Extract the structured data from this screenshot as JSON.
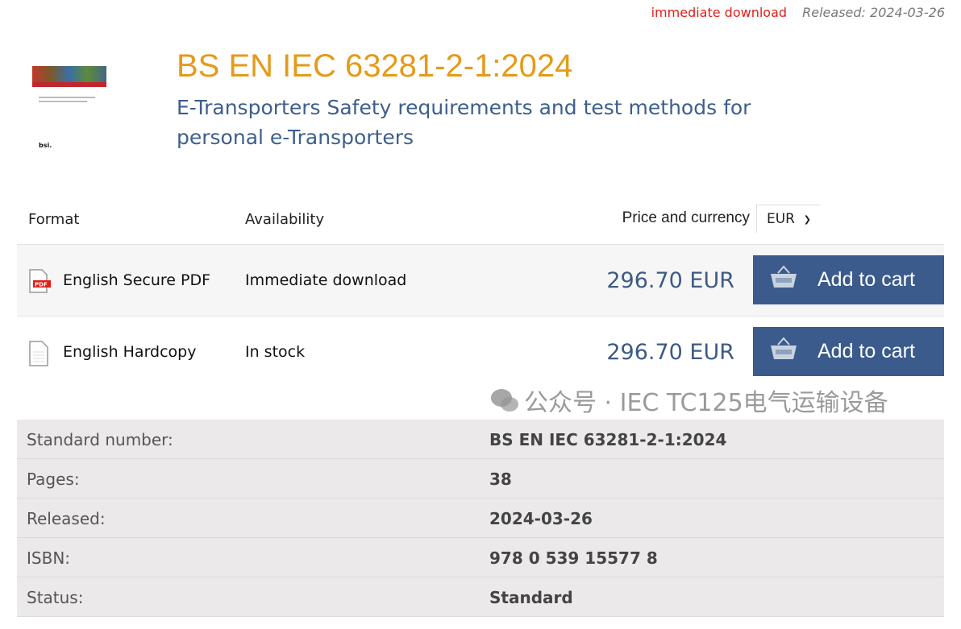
{
  "topbar": {
    "availability": "immediate download",
    "released": "Released: 2024-03-26"
  },
  "product": {
    "title": "BS EN IEC 63281-2-1:2024",
    "subtitle": "E-Transporters Safety requirements and test methods for personal e-Transporters"
  },
  "table": {
    "headers": {
      "format": "Format",
      "availability": "Availability",
      "price": "Price and currency"
    },
    "currency": "EUR",
    "rows": [
      {
        "icon": "pdf-file-icon",
        "format": "English Secure PDF",
        "availability": "Immediate download",
        "price": "296.70 EUR",
        "button": "Add to cart"
      },
      {
        "icon": "document-icon",
        "format": "English Hardcopy",
        "availability": "In stock",
        "price": "296.70 EUR",
        "button": "Add to cart"
      }
    ]
  },
  "details": [
    {
      "label": "Standard number:",
      "value": "BS EN IEC 63281-2-1:2024"
    },
    {
      "label": "Pages:",
      "value": "38"
    },
    {
      "label": "Released:",
      "value": "2024-03-26"
    },
    {
      "label": "ISBN:",
      "value": "978 0 539 15577 8"
    },
    {
      "label": "Status:",
      "value": "Standard"
    }
  ],
  "watermark": "公众号 · IEC TC125电气运输设备",
  "colors": {
    "title": "#e59a1a",
    "button": "#3a5b8c",
    "price": "#3d5a84",
    "alert": "#e0201a"
  }
}
